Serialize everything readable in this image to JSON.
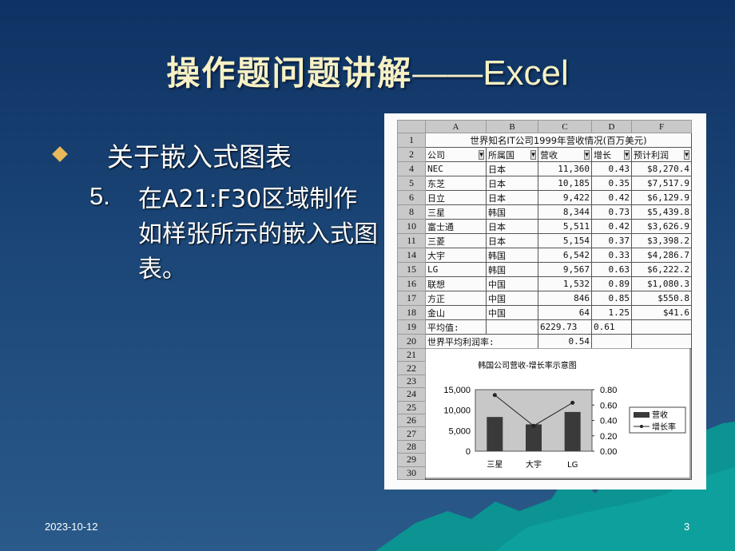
{
  "slide": {
    "title_cn": "操作题问题讲解",
    "title_dash": "——",
    "title_en": "Excel",
    "bullet1": "关于嵌入式图表",
    "item_number": "5.",
    "item_text": "在A21:F30区域制作如样张所示的嵌入式图表。",
    "date": "2023-10-12",
    "page": "3",
    "colors": {
      "background": "#1b4677",
      "title": "#f6f1c4",
      "bullet": "#e8b85a",
      "mountain": "#0a9a98"
    }
  },
  "sheet": {
    "columns": [
      "A",
      "B",
      "C",
      "D",
      "F"
    ],
    "row1_title": "世界知名IT公司1999年营收情况(百万美元)",
    "headers": [
      "公司",
      "所属国",
      "营收",
      "增长",
      "预计利润"
    ],
    "rows": [
      {
        "n": "4",
        "cells": [
          "NEC",
          "日本",
          "11,360",
          "0.43",
          "$8,270.4"
        ]
      },
      {
        "n": "5",
        "cells": [
          "东芝",
          "日本",
          "10,185",
          "0.35",
          "$7,517.9"
        ]
      },
      {
        "n": "6",
        "cells": [
          "日立",
          "日本",
          "9,422",
          "0.42",
          "$6,129.9"
        ]
      },
      {
        "n": "8",
        "cells": [
          "三星",
          "韩国",
          "8,344",
          "0.73",
          "$5,439.8"
        ]
      },
      {
        "n": "10",
        "cells": [
          "富士通",
          "日本",
          "5,511",
          "0.42",
          "$3,626.9"
        ]
      },
      {
        "n": "11",
        "cells": [
          "三菱",
          "日本",
          "5,154",
          "0.37",
          "$3,398.2"
        ]
      },
      {
        "n": "14",
        "cells": [
          "大宇",
          "韩国",
          "6,542",
          "0.33",
          "$4,286.7"
        ]
      },
      {
        "n": "15",
        "cells": [
          "LG",
          "韩国",
          "9,567",
          "0.63",
          "$6,222.2"
        ]
      },
      {
        "n": "16",
        "cells": [
          "联想",
          "中国",
          "1,532",
          "0.89",
          "$1,080.3"
        ]
      },
      {
        "n": "17",
        "cells": [
          "方正",
          "中国",
          "846",
          "0.85",
          "$550.8"
        ]
      },
      {
        "n": "18",
        "cells": [
          "金山",
          "中国",
          "64",
          "1.25",
          "$41.6"
        ]
      }
    ],
    "avg_row": {
      "n": "19",
      "label": "平均值:",
      "revenue": "6229.73",
      "growth": "0.61"
    },
    "world_row": {
      "n": "20",
      "label": "世界平均利润率:",
      "value": "0.54"
    },
    "chart_rows": [
      "21",
      "22",
      "23",
      "24",
      "25",
      "26",
      "27",
      "28",
      "29",
      "30"
    ]
  },
  "chart_data": {
    "type": "bar",
    "title": "韩国公司营收-增长率示意图",
    "categories": [
      "三星",
      "大宇",
      "LG"
    ],
    "series": [
      {
        "name": "营收",
        "type": "bar",
        "axis": "left",
        "values": [
          8344,
          6542,
          9567
        ],
        "color": "#3a3a3a"
      },
      {
        "name": "增长率",
        "type": "line",
        "axis": "right",
        "values": [
          0.73,
          0.33,
          0.63
        ],
        "color": "#222222"
      }
    ],
    "y_left": {
      "ylim": [
        0,
        15000
      ],
      "ticks": [
        "0",
        "5,000",
        "10,000",
        "15,000"
      ]
    },
    "y_right": {
      "ylim": [
        0,
        0.8
      ],
      "ticks": [
        "0.00",
        "0.20",
        "0.40",
        "0.60",
        "0.80"
      ]
    },
    "plot_background": "#c8c8c8",
    "legend": "right"
  }
}
